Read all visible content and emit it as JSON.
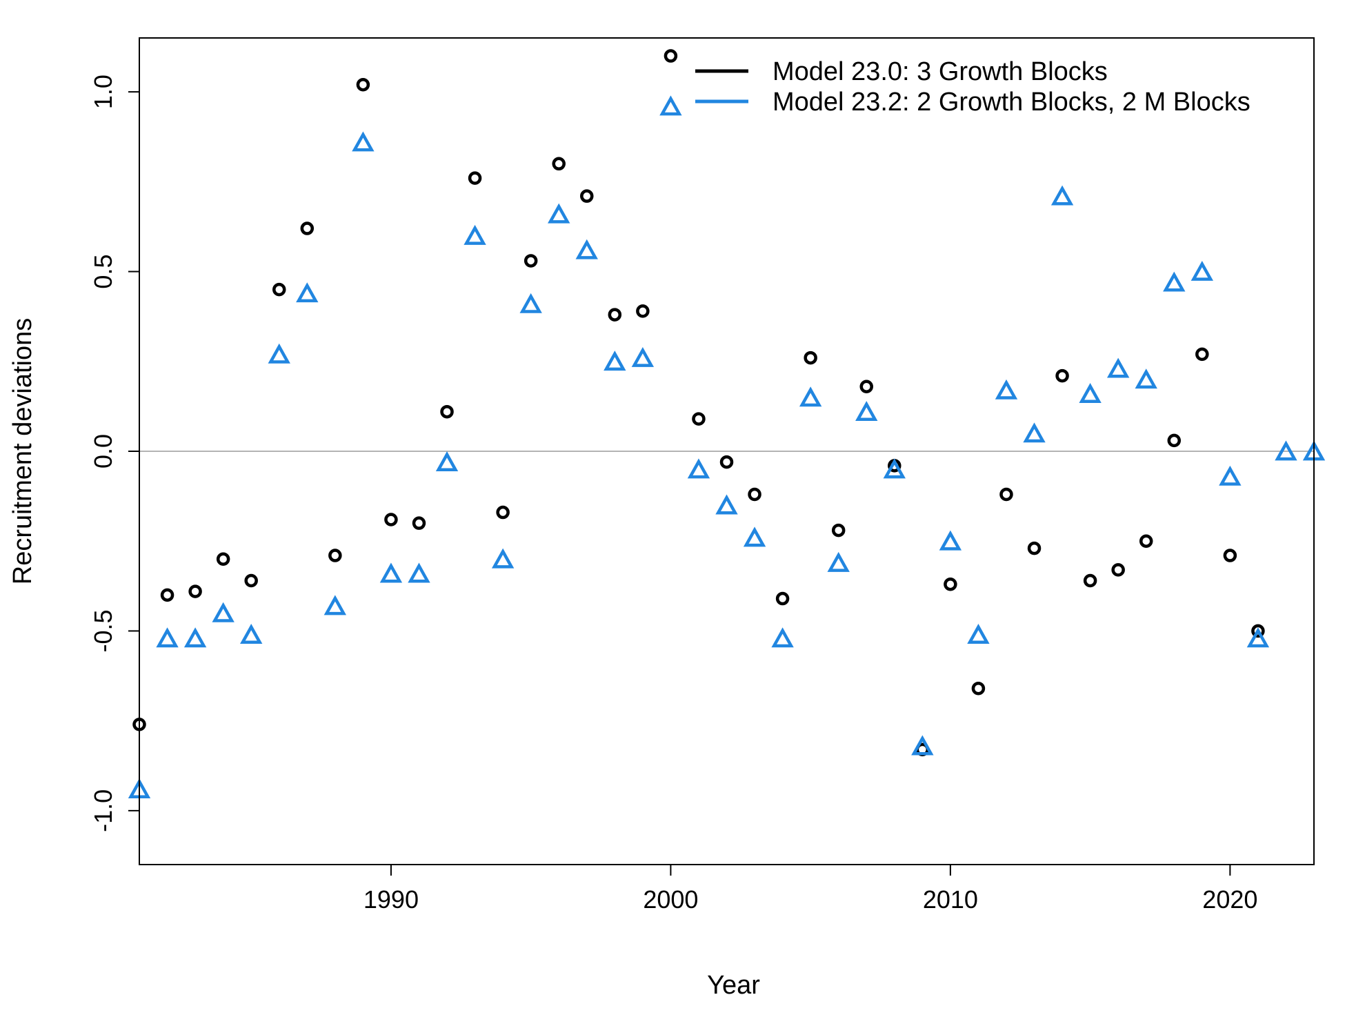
{
  "chart_data": {
    "type": "scatter",
    "xlabel": "Year",
    "ylabel": "Recruitment deviations",
    "xlim": [
      1981,
      2023
    ],
    "ylim": [
      -1.15,
      1.15
    ],
    "x_ticks": [
      1990,
      2000,
      2010,
      2020
    ],
    "y_ticks": [
      -1.0,
      -0.5,
      0.0,
      0.5,
      1.0
    ],
    "y_tick_labels": [
      "-1.0",
      "-0.5",
      "0.0",
      "0.5",
      "1.0"
    ],
    "reference_line_y": 0,
    "reference_line_color": "#b3b3b3",
    "legend": {
      "position": "top-right"
    },
    "x": [
      1981,
      1982,
      1983,
      1984,
      1985,
      1986,
      1987,
      1988,
      1989,
      1990,
      1991,
      1992,
      1993,
      1994,
      1995,
      1996,
      1997,
      1998,
      1999,
      2000,
      2001,
      2002,
      2003,
      2004,
      2005,
      2006,
      2007,
      2008,
      2009,
      2010,
      2011,
      2012,
      2013,
      2014,
      2015,
      2016,
      2017,
      2018,
      2019,
      2020,
      2021,
      2022,
      2023
    ],
    "series": [
      {
        "name": "Model 23.0: 3 Growth Blocks",
        "color": "#000000",
        "marker": "circle",
        "values": [
          -0.76,
          -0.4,
          -0.39,
          -0.3,
          -0.36,
          0.45,
          0.62,
          -0.29,
          1.02,
          -0.19,
          -0.2,
          0.11,
          0.76,
          -0.17,
          0.53,
          0.8,
          0.71,
          0.38,
          0.39,
          1.1,
          0.09,
          -0.03,
          -0.12,
          -0.41,
          0.26,
          -0.22,
          0.18,
          -0.04,
          -0.83,
          -0.37,
          -0.66,
          -0.12,
          -0.27,
          0.21,
          -0.36,
          -0.33,
          -0.25,
          0.03,
          0.27,
          -0.29,
          -0.5,
          null,
          null
        ]
      },
      {
        "name": "Model 23.2: 2 Growth Blocks, 2 M Blocks",
        "color": "#2186e0",
        "marker": "triangle",
        "values": [
          -0.94,
          -0.52,
          -0.52,
          -0.45,
          -0.51,
          0.27,
          0.44,
          -0.43,
          0.86,
          -0.34,
          -0.34,
          -0.03,
          0.6,
          -0.3,
          0.41,
          0.66,
          0.56,
          0.25,
          0.26,
          0.96,
          -0.05,
          -0.15,
          -0.24,
          -0.52,
          0.15,
          -0.31,
          0.11,
          -0.05,
          -0.82,
          -0.25,
          -0.51,
          0.17,
          0.05,
          0.71,
          0.16,
          0.23,
          0.2,
          0.47,
          0.5,
          -0.07,
          -0.52,
          0.0,
          0.0
        ]
      }
    ]
  }
}
